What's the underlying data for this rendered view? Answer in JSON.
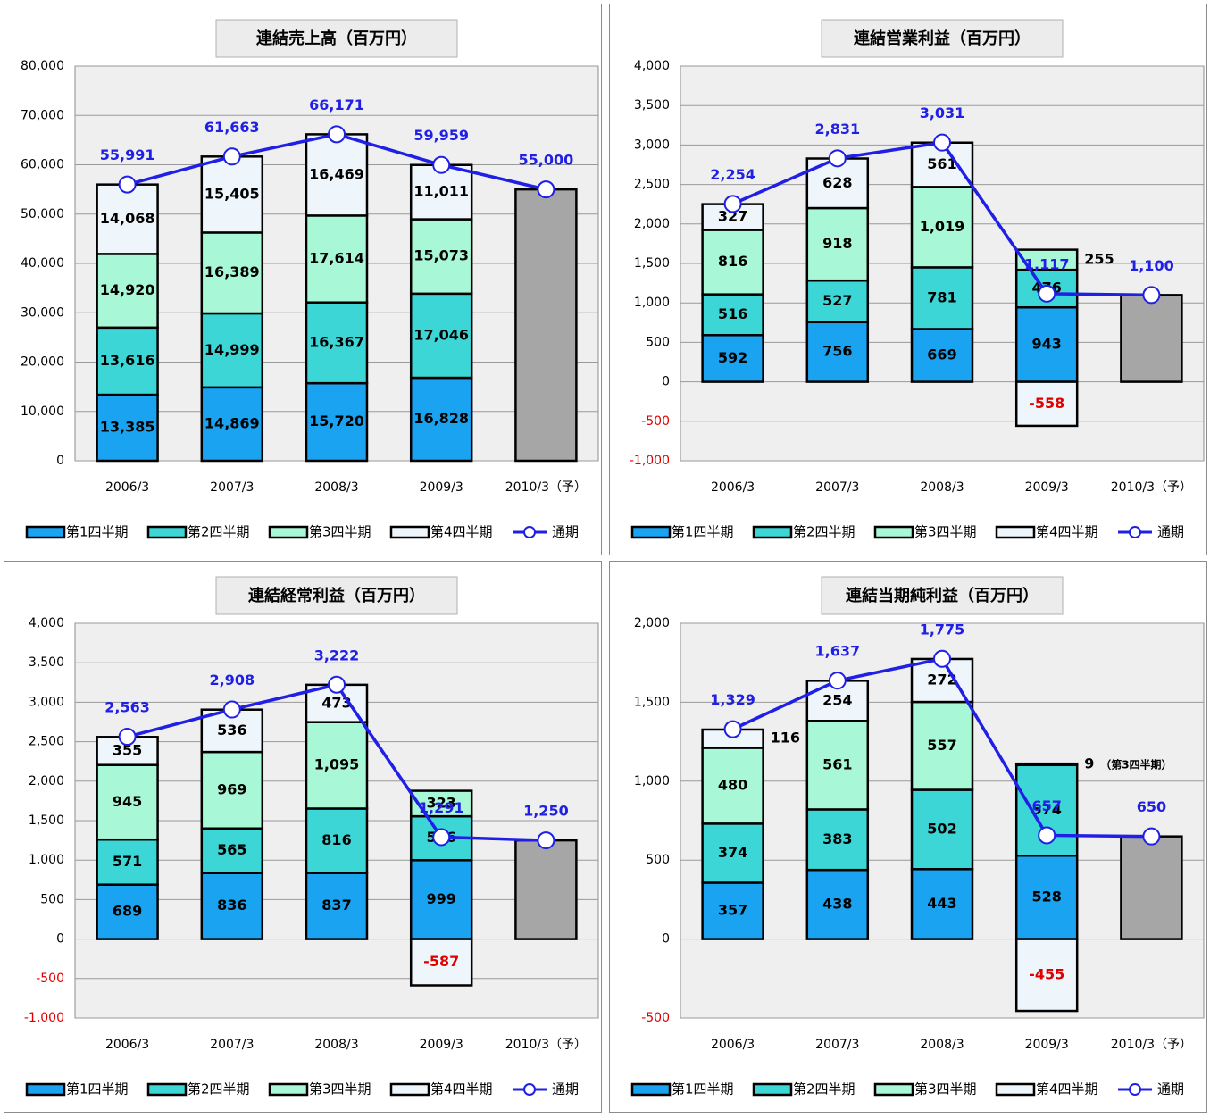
{
  "chart_data": [
    {
      "type": "bar",
      "stacked": true,
      "title": "連結売上高（百万円）",
      "categories": [
        "2006/3",
        "2007/3",
        "2008/3",
        "2009/3",
        "2010/3（予）"
      ],
      "series": [
        {
          "name": "第1四半期",
          "type": "bar",
          "color": "#1aa3f0",
          "values": [
            13385,
            14869,
            15720,
            16828,
            null
          ],
          "value_labels": [
            "13,385",
            "14,869",
            "15,720",
            "16,828",
            null
          ]
        },
        {
          "name": "第2四半期",
          "type": "bar",
          "color": "#3dd6d6",
          "values": [
            13616,
            14999,
            16367,
            17046,
            null
          ],
          "value_labels": [
            "13,616",
            "14,999",
            "16,367",
            "17,046",
            null
          ]
        },
        {
          "name": "第3四半期",
          "type": "bar",
          "color": "#a8f7d6",
          "values": [
            14920,
            16389,
            17614,
            15073,
            null
          ],
          "value_labels": [
            "14,920",
            "16,389",
            "17,614",
            "15,073",
            null
          ]
        },
        {
          "name": "第4四半期",
          "type": "bar",
          "color": "#eef6fc",
          "values": [
            14068,
            15405,
            16469,
            11011,
            null
          ],
          "value_labels": [
            "14,068",
            "15,405",
            "16,469",
            "11,011",
            null
          ]
        },
        {
          "name": "通期",
          "type": "line",
          "color": "#1f1fe6",
          "values": [
            55991,
            61663,
            66171,
            59959,
            55000
          ],
          "value_labels": [
            "55,991",
            "61,663",
            "66,171",
            "59,959",
            "55,000"
          ]
        }
      ],
      "forecast_color": "#a6a6a6",
      "ylim": [
        0,
        80000
      ],
      "yticks": [
        0,
        {
          "value": 10000,
          "label": "10,000"
        },
        {
          "value": 20000,
          "label": "20,000"
        },
        {
          "value": 30000,
          "label": "30,000"
        },
        {
          "value": 40000,
          "label": "40,000"
        },
        {
          "value": 50000,
          "label": "50,000"
        },
        {
          "value": 60000,
          "label": "60,000"
        },
        {
          "value": 70000,
          "label": "70,000"
        },
        {
          "value": 80000,
          "label": "80,000"
        }
      ],
      "grid": true,
      "legend": "bottom"
    },
    {
      "type": "bar",
      "stacked": true,
      "title": "連結営業利益（百万円）",
      "categories": [
        "2006/3",
        "2007/3",
        "2008/3",
        "2009/3",
        "2010/3（予）"
      ],
      "series": [
        {
          "name": "第1四半期",
          "type": "bar",
          "color": "#1aa3f0",
          "values": [
            592,
            756,
            669,
            943,
            null
          ]
        },
        {
          "name": "第2四半期",
          "type": "bar",
          "color": "#3dd6d6",
          "values": [
            516,
            527,
            781,
            476,
            null
          ]
        },
        {
          "name": "第3四半期",
          "type": "bar",
          "color": "#a8f7d6",
          "values": [
            816,
            918,
            1019,
            255,
            null
          ],
          "value_labels": [
            "816",
            "918",
            "1,019",
            "255",
            null
          ]
        },
        {
          "name": "第4四半期",
          "type": "bar",
          "color": "#eef6fc",
          "values": [
            327,
            628,
            561,
            -558,
            null
          ]
        },
        {
          "name": "通期",
          "type": "line",
          "color": "#1f1fe6",
          "values": [
            2254,
            2831,
            3031,
            1117,
            1100
          ],
          "value_labels": [
            "2,254",
            "2,831",
            "3,031",
            "1,117",
            "1,100"
          ]
        }
      ],
      "forecast_color": "#a6a6a6",
      "ylim": [
        -1000,
        4000
      ],
      "yticks": [
        {
          "value": -1000,
          "label": "-1,000"
        },
        -500,
        0,
        500,
        {
          "value": 1000,
          "label": "1,000"
        },
        {
          "value": 1500,
          "label": "1,500"
        },
        {
          "value": 2000,
          "label": "2,000"
        },
        {
          "value": 2500,
          "label": "2,500"
        },
        {
          "value": 3000,
          "label": "3,000"
        },
        {
          "value": 3500,
          "label": "3,500"
        },
        {
          "value": 4000,
          "label": "4,000"
        }
      ],
      "grid": true,
      "legend": "bottom"
    },
    {
      "type": "bar",
      "stacked": true,
      "title": "連結経常利益（百万円）",
      "categories": [
        "2006/3",
        "2007/3",
        "2008/3",
        "2009/3",
        "2010/3（予）"
      ],
      "series": [
        {
          "name": "第1四半期",
          "type": "bar",
          "color": "#1aa3f0",
          "values": [
            689,
            836,
            837,
            999,
            null
          ]
        },
        {
          "name": "第2四半期",
          "type": "bar",
          "color": "#3dd6d6",
          "values": [
            571,
            565,
            816,
            556,
            null
          ]
        },
        {
          "name": "第3四半期",
          "type": "bar",
          "color": "#a8f7d6",
          "values": [
            945,
            969,
            1095,
            323,
            null
          ],
          "value_labels": [
            "945",
            "969",
            "1,095",
            "323",
            null
          ]
        },
        {
          "name": "第4四半期",
          "type": "bar",
          "color": "#eef6fc",
          "values": [
            355,
            536,
            473,
            -587,
            null
          ]
        },
        {
          "name": "通期",
          "type": "line",
          "color": "#1f1fe6",
          "values": [
            2563,
            2908,
            3222,
            1291,
            1250
          ],
          "value_labels": [
            "2,563",
            "2,908",
            "3,222",
            "1,291",
            "1,250"
          ]
        }
      ],
      "forecast_color": "#a6a6a6",
      "ylim": [
        -1000,
        4000
      ],
      "yticks": [
        {
          "value": -1000,
          "label": "-1,000"
        },
        -500,
        0,
        500,
        {
          "value": 1000,
          "label": "1,000"
        },
        {
          "value": 1500,
          "label": "1,500"
        },
        {
          "value": 2000,
          "label": "2,000"
        },
        {
          "value": 2500,
          "label": "2,500"
        },
        {
          "value": 3000,
          "label": "3,000"
        },
        {
          "value": 3500,
          "label": "3,500"
        },
        {
          "value": 4000,
          "label": "4,000"
        }
      ],
      "grid": true,
      "legend": "bottom"
    },
    {
      "type": "bar",
      "stacked": true,
      "title": "連結当期純利益（百万円）",
      "categories": [
        "2006/3",
        "2007/3",
        "2008/3",
        "2009/3",
        "2010/3（予）"
      ],
      "series": [
        {
          "name": "第1四半期",
          "type": "bar",
          "color": "#1aa3f0",
          "values": [
            357,
            438,
            443,
            528,
            null
          ]
        },
        {
          "name": "第2四半期",
          "type": "bar",
          "color": "#3dd6d6",
          "values": [
            374,
            383,
            502,
            574,
            null
          ]
        },
        {
          "name": "第3四半期",
          "type": "bar",
          "color": "#a8f7d6",
          "values": [
            480,
            561,
            557,
            9,
            null
          ]
        },
        {
          "name": "第4四半期",
          "type": "bar",
          "color": "#eef6fc",
          "values": [
            116,
            254,
            272,
            -455,
            null
          ]
        },
        {
          "name": "通期",
          "type": "line",
          "color": "#1f1fe6",
          "values": [
            1329,
            1637,
            1775,
            657,
            650
          ],
          "value_labels": [
            "1,329",
            "1,637",
            "1,775",
            "657",
            "650"
          ]
        }
      ],
      "annotation": "（第3四半期）",
      "forecast_color": "#a6a6a6",
      "ylim": [
        -500,
        2000
      ],
      "yticks": [
        -500,
        0,
        500,
        {
          "value": 1000,
          "label": "1,000"
        },
        {
          "value": 1500,
          "label": "1,500"
        },
        {
          "value": 2000,
          "label": "2,000"
        }
      ],
      "grid": true,
      "legend": "bottom"
    }
  ]
}
